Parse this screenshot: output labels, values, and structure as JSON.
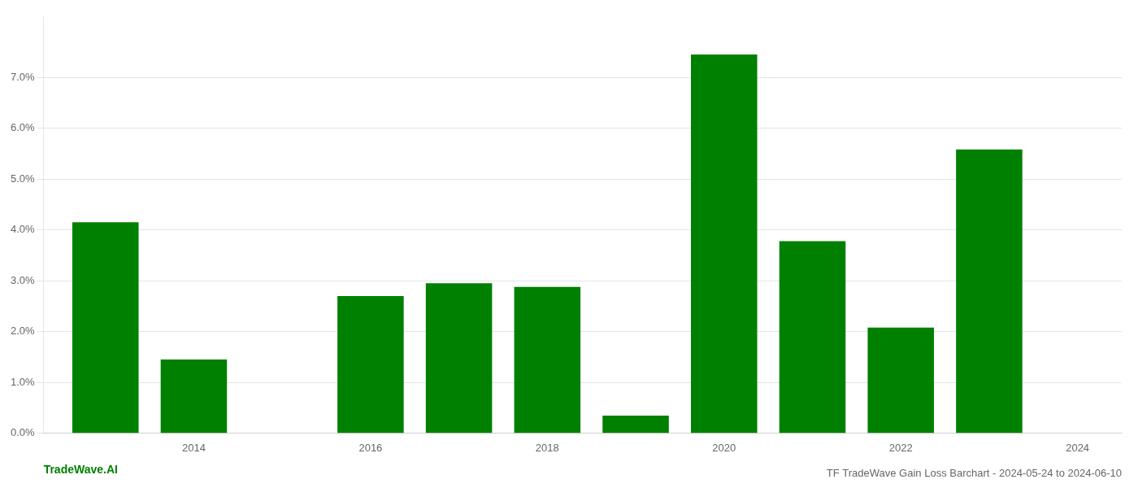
{
  "chart_data": {
    "type": "bar",
    "title": "TF TradeWave Gain Loss Barchart - 2024-05-24 to 2024-06-10",
    "annotations": [
      {
        "text": "TradeWave.AI",
        "color": "#008000"
      }
    ],
    "x": [
      2013,
      2014,
      2016,
      2017,
      2018,
      2019,
      2020,
      2021,
      2022,
      2023
    ],
    "values": [
      0.0415,
      0.0145,
      0.027,
      0.0295,
      0.0288,
      0.0035,
      0.0745,
      0.0378,
      0.0208,
      0.0558
    ],
    "color": "#008000",
    "xlim": [
      2012.3,
      2024.5
    ],
    "xticks": [
      2014,
      2016,
      2018,
      2020,
      2022,
      2024
    ],
    "ylim": [
      0.0,
      0.082
    ],
    "yticks": [
      {
        "value": 0.0,
        "label": "0.0%"
      },
      {
        "value": 0.01,
        "label": "1.0%"
      },
      {
        "value": 0.02,
        "label": "2.0%"
      },
      {
        "value": 0.03,
        "label": "3.0%"
      },
      {
        "value": 0.04,
        "label": "4.0%"
      },
      {
        "value": 0.05,
        "label": "5.0%"
      },
      {
        "value": 0.06,
        "label": "6.0%"
      },
      {
        "value": 0.07,
        "label": "7.0%"
      }
    ],
    "grid": true
  }
}
